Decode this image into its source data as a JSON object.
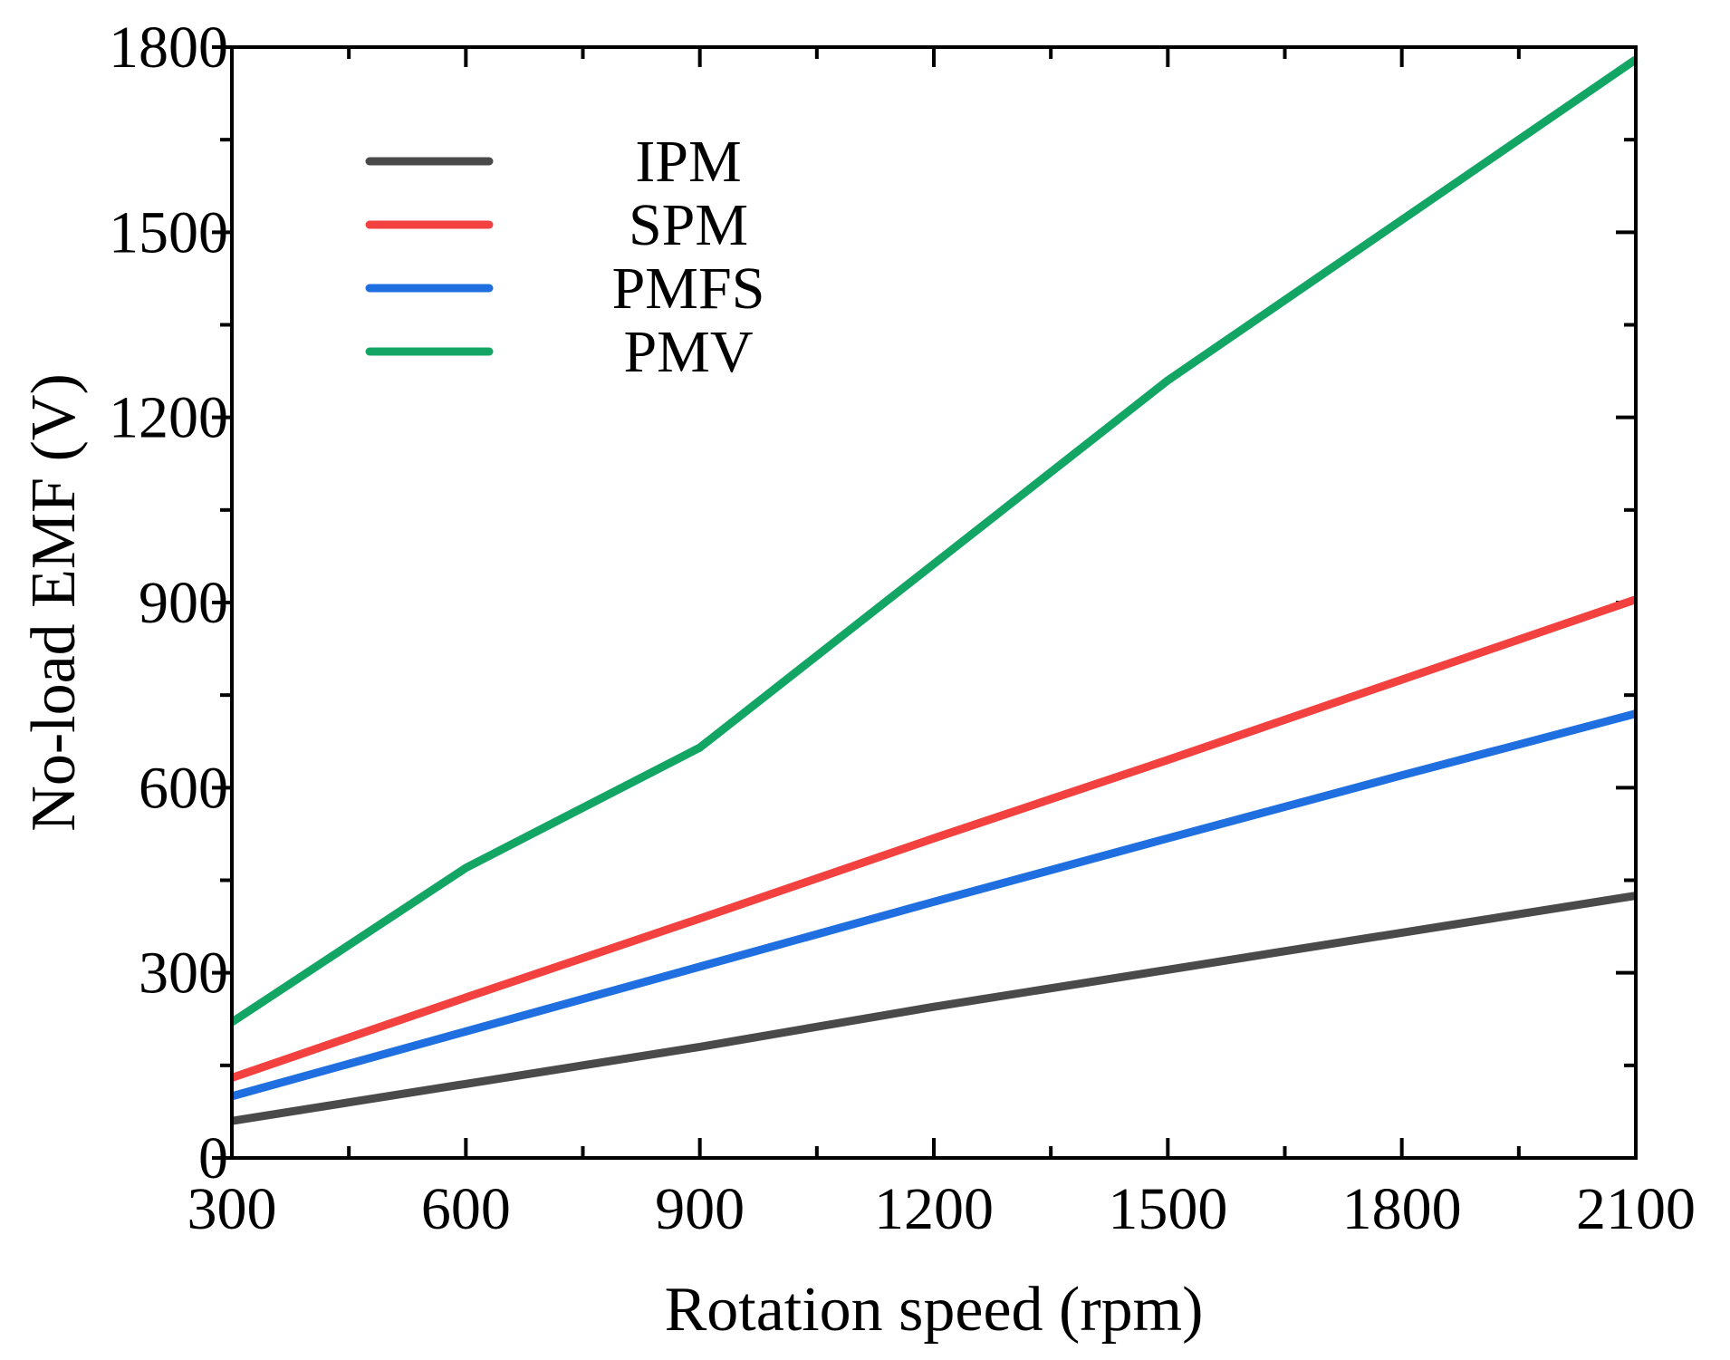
{
  "chart_data": {
    "type": "line",
    "title": "",
    "xlabel": "Rotation speed (rpm)",
    "ylabel": "No-load EMF (V)",
    "xlim": [
      300,
      2100
    ],
    "ylim": [
      0,
      1800
    ],
    "x_ticks": [
      300,
      600,
      900,
      1200,
      1500,
      1800,
      2100
    ],
    "x_tick_labels": [
      "300",
      "600",
      "900",
      "1200",
      "1500",
      "1800",
      "2100"
    ],
    "x_minor_ticks": [
      450,
      750,
      1050,
      1350,
      1650,
      1950
    ],
    "y_ticks": [
      0,
      300,
      600,
      900,
      1200,
      1500,
      1800
    ],
    "y_tick_labels": [
      "0",
      "300",
      "600",
      "900",
      "1200",
      "1500",
      "1800"
    ],
    "y_minor_ticks": [
      150,
      450,
      750,
      1050,
      1350,
      1650
    ],
    "legend_position": "top-left",
    "series": [
      {
        "name": "IPM",
        "color": "#4a4a4a",
        "x": [
          300,
          600,
          900,
          1200,
          1500,
          1800,
          2100
        ],
        "values": [
          60,
          120,
          180,
          245,
          305,
          365,
          425
        ]
      },
      {
        "name": "SPM",
        "color": "#f2413f",
        "x": [
          300,
          600,
          900,
          1200,
          1500,
          1800,
          2100
        ],
        "values": [
          130,
          260,
          388,
          518,
          645,
          775,
          905
        ]
      },
      {
        "name": "PMFS",
        "color": "#1f6fe0",
        "x": [
          300,
          600,
          900,
          1200,
          1500,
          1800,
          2100
        ],
        "values": [
          100,
          205,
          310,
          415,
          518,
          620,
          720
        ]
      },
      {
        "name": "PMV",
        "color": "#13a564",
        "x": [
          300,
          600,
          900,
          1500,
          2100
        ],
        "values": [
          220,
          470,
          665,
          1260,
          1780
        ]
      }
    ]
  }
}
